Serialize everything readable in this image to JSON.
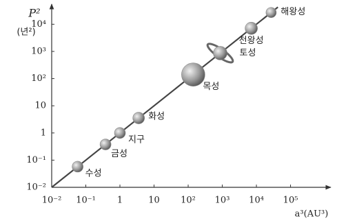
{
  "chart_data": {
    "type": "scatter",
    "y_label": "P²",
    "y_unit": "(년²)",
    "x_label": "a³(AU³)",
    "x": [
      0.0576,
      0.378,
      1,
      3.54,
      140.6,
      868,
      7078,
      27000
    ],
    "values": [
      0.0576,
      0.378,
      1,
      3.54,
      140.6,
      868,
      7078,
      27000
    ],
    "labels": [
      "수성",
      "금성",
      "지구",
      "화성",
      "목성",
      "토성",
      "천왕성",
      "해왕성"
    ],
    "color": "#8a8a8a",
    "log_x": true,
    "log_y": true,
    "xlim": [
      0.01,
      1380000
    ],
    "ylim": [
      0.01,
      49000
    ],
    "xticks": [
      {
        "value": 0.01,
        "label": "10⁻²"
      },
      {
        "value": 0.1,
        "label": "10⁻¹"
      },
      1,
      10,
      {
        "value": 100,
        "label": "10²"
      },
      {
        "value": 1000,
        "label": "10³"
      },
      {
        "value": 10000,
        "label": "10⁴"
      },
      {
        "value": 100000,
        "label": "10⁵"
      }
    ],
    "yticks": [
      {
        "value": 0.01,
        "label": "10⁻²"
      },
      {
        "value": 0.1,
        "label": "10⁻¹"
      },
      1,
      10,
      {
        "value": 100,
        "label": "10²"
      },
      {
        "value": 1000,
        "label": "10³"
      },
      {
        "value": 10000,
        "label": "10⁴"
      }
    ]
  }
}
